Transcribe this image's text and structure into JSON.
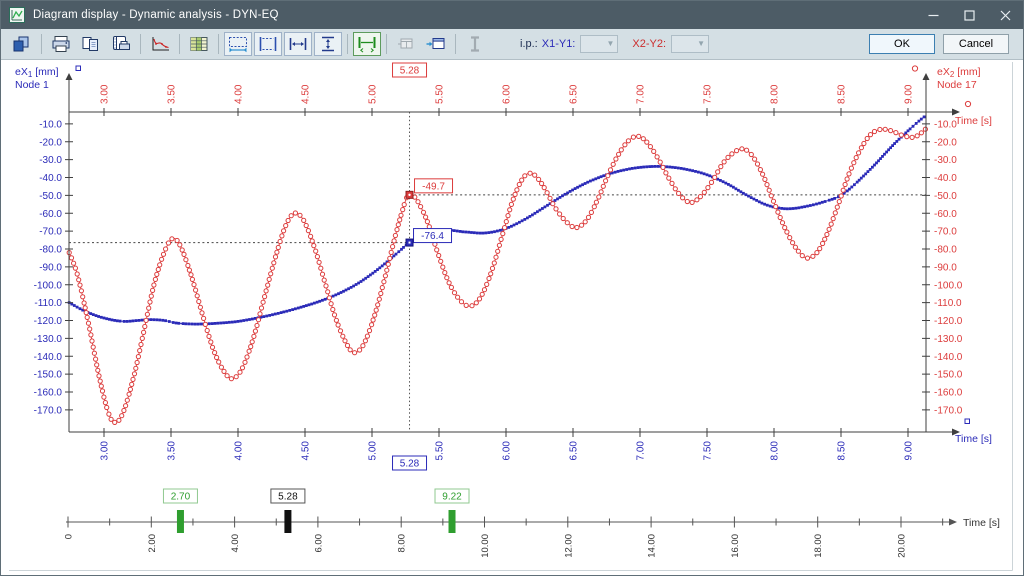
{
  "window": {
    "title": "Diagram display - Dynamic analysis - DYN-EQ",
    "icons": [
      "app-icon",
      "minimize-icon",
      "maximize-icon",
      "close-icon"
    ]
  },
  "toolbar": {
    "prefix_label": "i.p.:",
    "x1y1_label": "X1-Y1:",
    "x2y2_label": "X2-Y2:",
    "ok_label": "OK",
    "cancel_label": "Cancel",
    "icons": [
      "copy-icon",
      "print-icon",
      "copy-pages-icon",
      "print-setup-icon",
      "diagram-icon",
      "table-icon",
      "zoom-horizontal-icon",
      "zoom-window-icon",
      "range-horizontal-icon",
      "range-vertical-icon",
      "time-range-icon",
      "window-add-icon",
      "window-arrow-icon",
      "ibeam-icon"
    ]
  },
  "chart_data": {
    "type": "line",
    "x_axis": {
      "label": "Time [s]",
      "range": [
        2.74,
        9.13
      ],
      "ticks": [
        3,
        3.5,
        4,
        4.5,
        5,
        5.5,
        6,
        6.5,
        7,
        7.5,
        8,
        8.5,
        9
      ],
      "tick_labels": [
        "3.00",
        "3.50",
        "4.00",
        "4.50",
        "5.00",
        "5.50",
        "6.00",
        "6.50",
        "7.00",
        "7.50",
        "8.00",
        "8.50",
        "9.00"
      ]
    },
    "y_axis_left": {
      "label_prefix": "eX",
      "label_sub": "1",
      "label_suffix": " [mm]",
      "node": "Node 1",
      "color": "#2b2bb8",
      "ticks": [
        -10,
        -20,
        -30,
        -40,
        -50,
        -60,
        -70,
        -80,
        -90,
        -100,
        -110,
        -120,
        -130,
        -140,
        -150,
        -160,
        -170
      ],
      "tick_labels": [
        "-10.0",
        "-20.0",
        "-30.0",
        "-40.0",
        "-50.0",
        "-60.0",
        "-70.0",
        "-80.0",
        "-90.0",
        "-100.0",
        "-110.0",
        "-120.0",
        "-130.0",
        "-140.0",
        "-150.0",
        "-160.0",
        "-170.0"
      ]
    },
    "y_axis_right": {
      "label_prefix": "eX",
      "label_sub": "2",
      "label_suffix": " [mm]",
      "node": "Node 17",
      "color": "#dc3c3c",
      "ticks": [
        -10,
        -20,
        -30,
        -40,
        -50,
        -60,
        -70,
        -80,
        -90,
        -100,
        -110,
        -120,
        -130,
        -140,
        -150,
        -160,
        -170
      ],
      "tick_labels": [
        "-10.0",
        "-20.0",
        "-30.0",
        "-40.0",
        "-50.0",
        "-60.0",
        "-70.0",
        "-80.0",
        "-90.0",
        "-100.0",
        "-110.0",
        "-120.0",
        "-130.0",
        "-140.0",
        "-150.0",
        "-160.0",
        "-170.0"
      ]
    },
    "series": [
      {
        "name": "eX1 [mm] Node 1",
        "axis": "left",
        "marker": "square",
        "color": "#2b2bb8",
        "points": [
          [
            2.74,
            -110
          ],
          [
            2.85,
            -114.5
          ],
          [
            2.95,
            -117.5
          ],
          [
            3.05,
            -119.5
          ],
          [
            3.15,
            -120.5
          ],
          [
            3.25,
            -120
          ],
          [
            3.35,
            -119.5
          ],
          [
            3.45,
            -120
          ],
          [
            3.55,
            -121.5
          ],
          [
            3.7,
            -122
          ],
          [
            3.85,
            -121.5
          ],
          [
            4.0,
            -120.5
          ],
          [
            4.15,
            -118.5
          ],
          [
            4.3,
            -116
          ],
          [
            4.45,
            -113
          ],
          [
            4.6,
            -109.5
          ],
          [
            4.75,
            -105
          ],
          [
            4.9,
            -99
          ],
          [
            5.05,
            -91
          ],
          [
            5.2,
            -81.5
          ],
          [
            5.28,
            -76.4
          ],
          [
            5.4,
            -72
          ],
          [
            5.55,
            -69.5
          ],
          [
            5.7,
            -70.5
          ],
          [
            5.85,
            -71
          ],
          [
            6.0,
            -68.5
          ],
          [
            6.15,
            -63
          ],
          [
            6.3,
            -56
          ],
          [
            6.45,
            -49
          ],
          [
            6.6,
            -43
          ],
          [
            6.75,
            -38.5
          ],
          [
            6.9,
            -35.5
          ],
          [
            7.05,
            -34
          ],
          [
            7.2,
            -34
          ],
          [
            7.35,
            -35.5
          ],
          [
            7.5,
            -38.5
          ],
          [
            7.65,
            -43.5
          ],
          [
            7.8,
            -50
          ],
          [
            7.95,
            -55.5
          ],
          [
            8.1,
            -57.5
          ],
          [
            8.25,
            -56
          ],
          [
            8.4,
            -53
          ],
          [
            8.5,
            -50
          ],
          [
            8.6,
            -44
          ],
          [
            8.75,
            -33
          ],
          [
            8.9,
            -21
          ],
          [
            9.05,
            -10.5
          ],
          [
            9.13,
            -5.5
          ]
        ]
      },
      {
        "name": "eX2 [mm] Node 17",
        "axis": "right",
        "marker": "circle",
        "color": "#dc3c3c",
        "points": [
          [
            2.74,
            -82
          ],
          [
            2.8,
            -94
          ],
          [
            2.88,
            -120
          ],
          [
            2.96,
            -150
          ],
          [
            3.03,
            -171
          ],
          [
            3.08,
            -177
          ],
          [
            3.14,
            -172
          ],
          [
            3.22,
            -152
          ],
          [
            3.3,
            -125
          ],
          [
            3.38,
            -98
          ],
          [
            3.46,
            -80
          ],
          [
            3.52,
            -74
          ],
          [
            3.58,
            -80
          ],
          [
            3.66,
            -97
          ],
          [
            3.74,
            -118
          ],
          [
            3.82,
            -137
          ],
          [
            3.9,
            -149
          ],
          [
            3.96,
            -152.5
          ],
          [
            4.03,
            -147
          ],
          [
            4.11,
            -131
          ],
          [
            4.19,
            -109
          ],
          [
            4.27,
            -87
          ],
          [
            4.35,
            -68
          ],
          [
            4.42,
            -60
          ],
          [
            4.49,
            -64
          ],
          [
            4.57,
            -79
          ],
          [
            4.65,
            -99
          ],
          [
            4.73,
            -119
          ],
          [
            4.81,
            -133
          ],
          [
            4.87,
            -138
          ],
          [
            4.94,
            -133
          ],
          [
            5.02,
            -117
          ],
          [
            5.1,
            -95
          ],
          [
            5.18,
            -71
          ],
          [
            5.25,
            -53
          ],
          [
            5.28,
            -49.7
          ],
          [
            5.33,
            -52
          ],
          [
            5.41,
            -64
          ],
          [
            5.49,
            -82
          ],
          [
            5.57,
            -98
          ],
          [
            5.65,
            -108
          ],
          [
            5.73,
            -112
          ],
          [
            5.81,
            -107
          ],
          [
            5.89,
            -93
          ],
          [
            5.97,
            -73
          ],
          [
            6.05,
            -53
          ],
          [
            6.13,
            -40
          ],
          [
            6.2,
            -38
          ],
          [
            6.28,
            -45
          ],
          [
            6.36,
            -56
          ],
          [
            6.44,
            -64
          ],
          [
            6.52,
            -68
          ],
          [
            6.6,
            -64
          ],
          [
            6.68,
            -53
          ],
          [
            6.76,
            -39
          ],
          [
            6.84,
            -27
          ],
          [
            6.92,
            -19
          ],
          [
            6.99,
            -17
          ],
          [
            7.06,
            -21
          ],
          [
            7.14,
            -30
          ],
          [
            7.22,
            -41
          ],
          [
            7.3,
            -50
          ],
          [
            7.38,
            -54
          ],
          [
            7.46,
            -50
          ],
          [
            7.54,
            -42
          ],
          [
            7.62,
            -32
          ],
          [
            7.7,
            -26
          ],
          [
            7.77,
            -24
          ],
          [
            7.84,
            -28
          ],
          [
            7.92,
            -39
          ],
          [
            8.0,
            -54
          ],
          [
            8.08,
            -68
          ],
          [
            8.16,
            -79
          ],
          [
            8.24,
            -85
          ],
          [
            8.32,
            -82
          ],
          [
            8.4,
            -71
          ],
          [
            8.48,
            -55
          ],
          [
            8.56,
            -38
          ],
          [
            8.64,
            -25
          ],
          [
            8.72,
            -16
          ],
          [
            8.8,
            -13
          ],
          [
            8.88,
            -14
          ],
          [
            8.96,
            -16.5
          ],
          [
            9.04,
            -17.5
          ],
          [
            9.1,
            -15
          ],
          [
            9.13,
            -13
          ]
        ]
      }
    ],
    "cursor": {
      "t": 5.28,
      "label": "5.28",
      "red_value": "-49.7",
      "red_v": -49.7,
      "blue_value": "-76.4",
      "blue_v": -76.4
    },
    "timeline": {
      "label": "Time [s]",
      "range": [
        0,
        21.3
      ],
      "major_ticks": [
        0,
        2,
        4,
        6,
        8,
        10,
        12,
        14,
        16,
        18,
        20
      ],
      "major_labels": [
        "0",
        "2.00",
        "4.00",
        "6.00",
        "8.00",
        "10.00",
        "12.00",
        "14.00",
        "16.00",
        "18.00",
        "20.00"
      ],
      "minor_ticks": [
        1,
        3,
        5,
        7,
        9,
        11,
        13,
        15,
        17,
        19,
        21
      ],
      "markers": [
        {
          "t": 2.7,
          "label": "2.70",
          "color": "#2f9e2f",
          "border": "#90c990"
        },
        {
          "t": 5.28,
          "label": "5.28",
          "color": "#111111",
          "border": "#555555"
        },
        {
          "t": 9.22,
          "label": "9.22",
          "color": "#2f9e2f",
          "border": "#90c990"
        }
      ]
    }
  }
}
